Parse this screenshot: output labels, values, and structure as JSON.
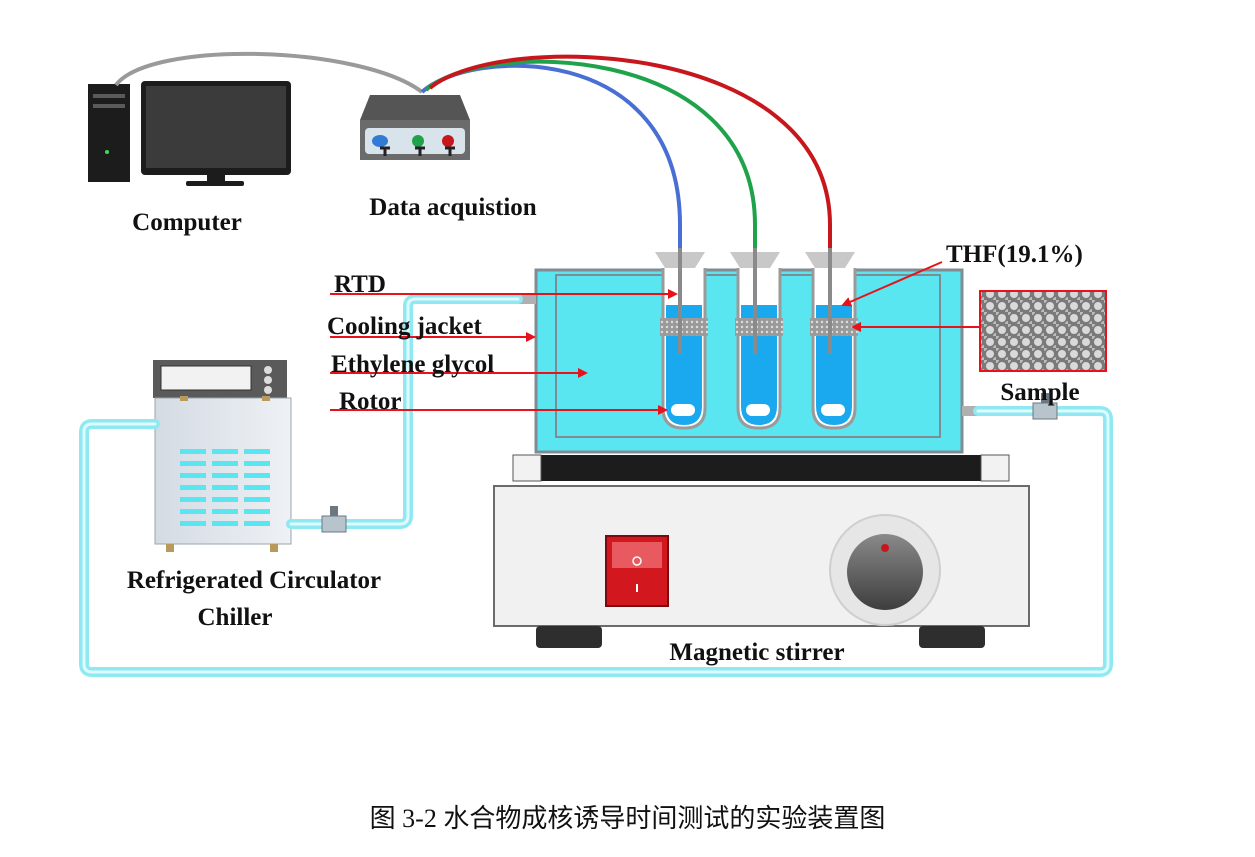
{
  "labels": {
    "computer": "Computer",
    "data_acquisition": "Data acquistion",
    "thf": "THF(19.1%)",
    "rtd": "RTD",
    "cooling_jacket": "Cooling jacket",
    "ethylene_glycol": "Ethylene glycol",
    "rotor": "Rotor",
    "sample": "Sample",
    "chiller_line1": "Refrigerated Circulator",
    "chiller_line2": "Chiller",
    "magnetic_stirrer": "Magnetic stirrer"
  },
  "caption": "图 3-2  水合物成核诱导时间测试的实验装置图",
  "colors": {
    "cable_blue": "#4a6fd4",
    "cable_green": "#1fa34a",
    "cable_red": "#c8161d",
    "cooling_liquid": "#59e6f0",
    "tube_liquid": "#1aa8ef",
    "water_hose": "#8ee9f2",
    "arrow": "#e8121b"
  },
  "icons": {
    "computer": "desktop-computer-icon",
    "data_acquisition": "data-logger-icon",
    "chiller": "refrigerated-chiller-icon",
    "stirrer": "magnetic-stirrer-icon",
    "sample": "porous-sample-micrograph-icon"
  }
}
